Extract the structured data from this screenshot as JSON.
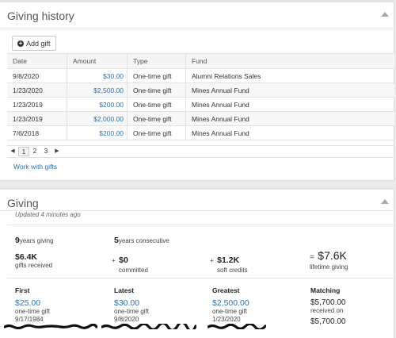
{
  "giving_history": {
    "title": "Giving history",
    "add_gift_label": "Add gift",
    "columns": [
      "Date",
      "Amount",
      "Type",
      "Fund"
    ],
    "rows": [
      {
        "date": "9/8/2020",
        "amount": "$30.00",
        "type": "One-time gift",
        "fund": "Alumni Relations Sales"
      },
      {
        "date": "1/23/2020",
        "amount": "$2,500.00",
        "type": "One-time gift",
        "fund": "Mines Annual Fund"
      },
      {
        "date": "1/23/2019",
        "amount": "$200.00",
        "type": "One-time gift",
        "fund": "Mines Annual Fund"
      },
      {
        "date": "1/23/2019",
        "amount": "$2,000.00",
        "type": "One-time gift",
        "fund": "Mines Annual Fund"
      },
      {
        "date": "7/6/2018",
        "amount": "$200.00",
        "type": "One-time gift",
        "fund": "Mines Annual Fund"
      }
    ],
    "pages": [
      "1",
      "2",
      "3"
    ],
    "current_page": "1",
    "work_with_gifts_label": "Work with gifts"
  },
  "giving": {
    "title": "Giving",
    "updated": "Updated 4 minutes ago",
    "years_giving_value": "9",
    "years_giving_label": "years giving",
    "years_consecutive_value": "5",
    "years_consecutive_label": "years consecutive",
    "gifts_received_value": "$6.4K",
    "gifts_received_label": "gifts received",
    "committed_prefix": "+",
    "committed_value": "$0",
    "committed_label": "committed",
    "soft_credits_prefix": "+",
    "soft_credits_value": "$1.2K",
    "soft_credits_label": "soft credits",
    "lifetime_prefix": "=",
    "lifetime_value": "$7.6K",
    "lifetime_label": "lifetime giving",
    "first": {
      "title": "First",
      "amount": "$25.00",
      "type": "one-time gift",
      "date": "9/17/1984"
    },
    "latest": {
      "title": "Latest",
      "amount": "$30.00",
      "type": "one-time gift",
      "date": "9/8/2020"
    },
    "greatest": {
      "title": "Greatest",
      "amount": "$2,500.00",
      "type": "one-time gift",
      "date": "1/23/2020"
    },
    "matching": {
      "title": "Matching",
      "amount": "$5,700.00",
      "received_label": "received on",
      "amount2": "$5,700.00"
    }
  },
  "colors": {
    "link": "#2a73b7",
    "redaction": "#111111"
  }
}
